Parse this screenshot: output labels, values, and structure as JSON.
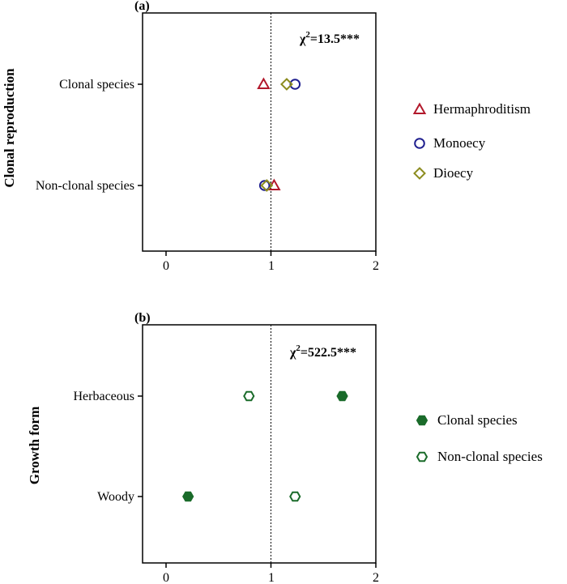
{
  "chart_data": [
    {
      "type": "scatter",
      "panel_label": "(a)",
      "ylabel": "Clonal reproduction",
      "xlim": [
        -0.2,
        2.0
      ],
      "xticks": [
        "0",
        "1",
        "2"
      ],
      "reference_line_x": 1,
      "categories": [
        "Clonal species",
        "Non-clonal species"
      ],
      "annotation": {
        "prefix": "χ",
        "sup": "2",
        "text": "=13.5***"
      },
      "series": [
        {
          "name": "Hermaphroditism",
          "marker": "triangle-open",
          "color": "#b2182b",
          "values": [
            0.93,
            1.03
          ]
        },
        {
          "name": "Monoecy",
          "marker": "circle-open",
          "color": "#1f1f8f",
          "values": [
            1.23,
            0.94
          ]
        },
        {
          "name": "Dioecy",
          "marker": "diamond-open",
          "color": "#8c8c1f",
          "values": [
            1.15,
            0.96
          ]
        }
      ]
    },
    {
      "type": "scatter",
      "panel_label": "(b)",
      "ylabel": "Growth form",
      "xlim": [
        -0.2,
        2.0
      ],
      "xticks": [
        "0",
        "1",
        "2"
      ],
      "reference_line_x": 1,
      "categories": [
        "Herbaceous",
        "Woody"
      ],
      "annotation": {
        "prefix": "χ",
        "sup": "2",
        "text": "=522.5***"
      },
      "series": [
        {
          "name": "Clonal species",
          "marker": "hexagon-filled",
          "color": "#1a6b2a",
          "values": [
            1.68,
            0.21
          ]
        },
        {
          "name": "Non-clonal species",
          "marker": "hexagon-open",
          "color": "#1a6b2a",
          "values": [
            0.79,
            1.23
          ]
        }
      ]
    }
  ]
}
